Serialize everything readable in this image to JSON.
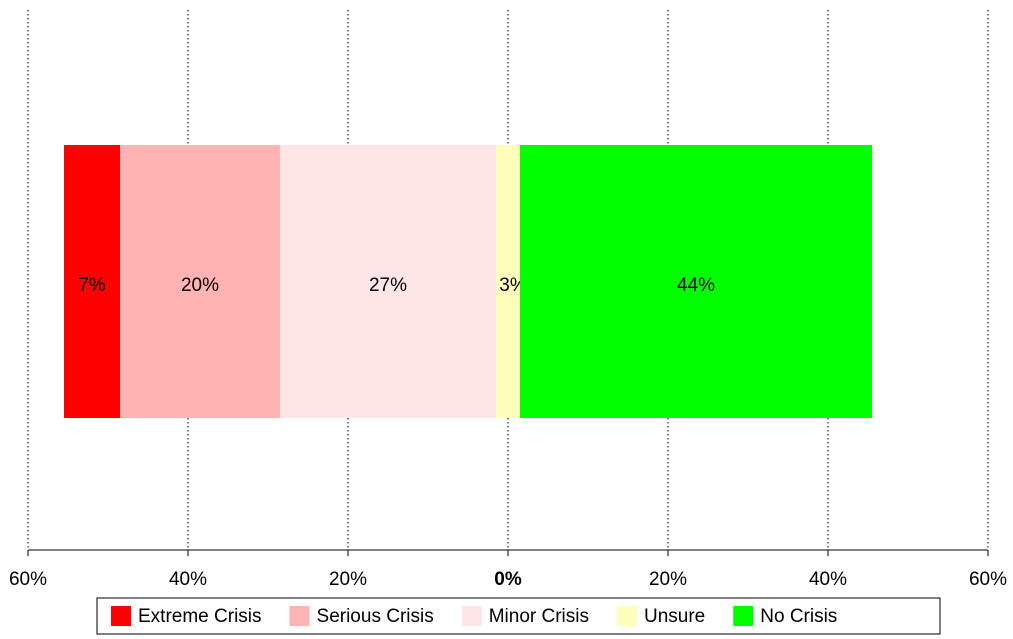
{
  "chart_data": {
    "type": "diverging_bar",
    "series": [
      {
        "name": "Extreme Crisis",
        "color": "#ff0000",
        "values": [
          7
        ],
        "value_labels": [
          "7%"
        ]
      },
      {
        "name": "Serious Crisis",
        "color": "#ffb3b3",
        "values": [
          20
        ],
        "value_labels": [
          "20%"
        ]
      },
      {
        "name": "Minor Crisis",
        "color": "#ffe6e6",
        "values": [
          27
        ],
        "value_labels": [
          "27%"
        ]
      },
      {
        "name": "Unsure",
        "color": "#ffffbb",
        "values": [
          3
        ],
        "value_labels": [
          "3%"
        ]
      },
      {
        "name": "No Crisis",
        "color": "#00ff00",
        "values": [
          44
        ],
        "value_labels": [
          "44%"
        ]
      }
    ],
    "xlim": [
      -60,
      60
    ],
    "xticks": [
      {
        "value": -60,
        "label": "60%"
      },
      {
        "value": -40,
        "label": "40%"
      },
      {
        "value": -20,
        "label": "20%"
      },
      {
        "value": 0,
        "label": "0%"
      },
      {
        "value": 20,
        "label": "20%"
      },
      {
        "value": 40,
        "label": "40%"
      },
      {
        "value": 60,
        "label": "60%"
      }
    ],
    "grid": true,
    "legend": "bottom"
  }
}
